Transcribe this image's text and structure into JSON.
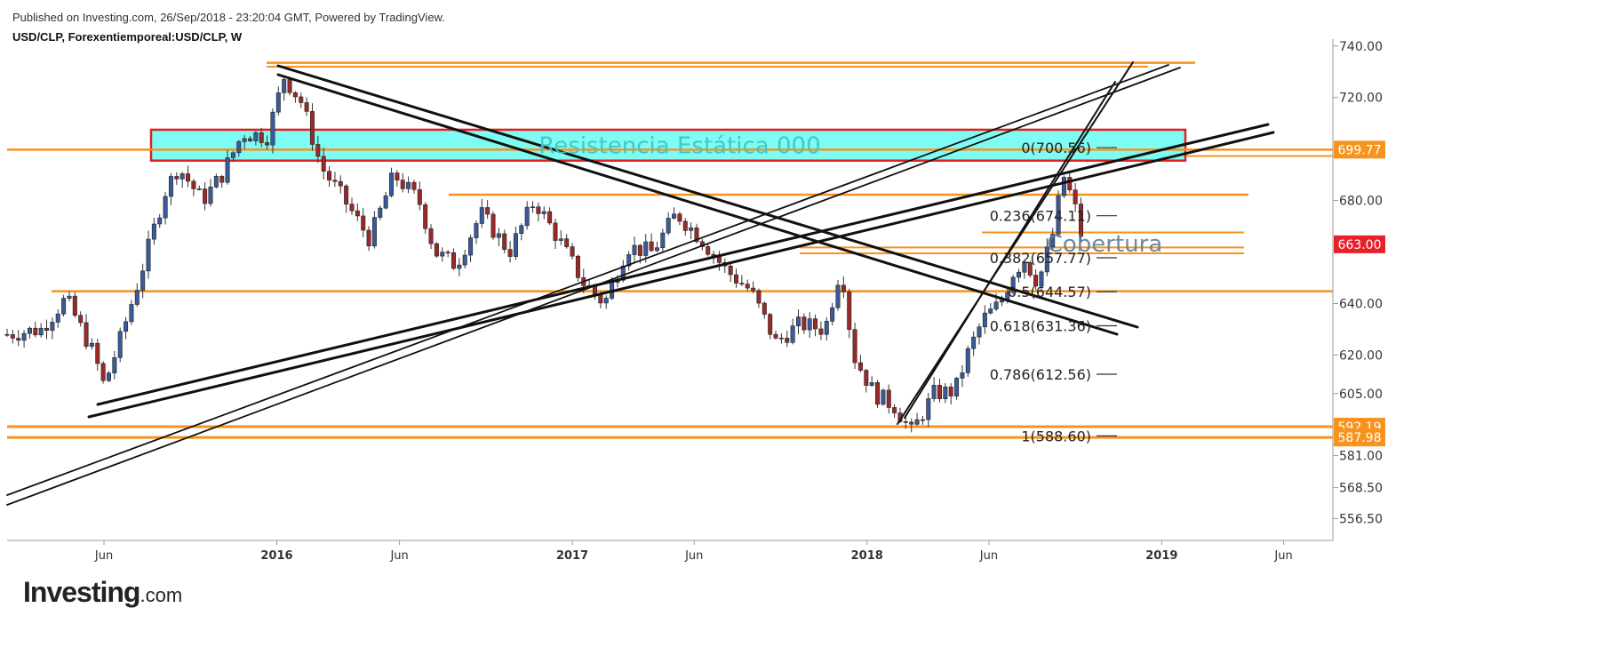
{
  "header": {
    "published": "Published on Investing.com, 26/Sep/2018 - 23:20:04 GMT, Powered by TradingView.",
    "symbol": "USD/CLP, Forexentiemporeal:USD/CLP, W"
  },
  "logo": {
    "main": "Investing",
    "suffix": ".com"
  },
  "chart_data": {
    "type": "candlestick",
    "interval": "W",
    "ylim": [
      548,
      742
    ],
    "xlim": [
      "2015-02-01",
      "2019-08-01"
    ],
    "y_ticks": [
      {
        "value": 740,
        "label": "740.00"
      },
      {
        "value": 720,
        "label": "720.00"
      },
      {
        "value": 680,
        "label": "680.00"
      },
      {
        "value": 640,
        "label": "640.00"
      },
      {
        "value": 620,
        "label": "620.00"
      },
      {
        "value": 605,
        "label": "605.00"
      },
      {
        "value": 581,
        "label": "581.00"
      },
      {
        "value": 568.5,
        "label": "568.50"
      },
      {
        "value": 556.5,
        "label": "556.50"
      }
    ],
    "x_ticks": [
      {
        "date": "2015-06-01",
        "label": "Jun",
        "bold": false
      },
      {
        "date": "2016-01-01",
        "label": "2016",
        "bold": true
      },
      {
        "date": "2016-06-01",
        "label": "Jun",
        "bold": false
      },
      {
        "date": "2017-01-01",
        "label": "2017",
        "bold": true
      },
      {
        "date": "2017-06-01",
        "label": "Jun",
        "bold": false
      },
      {
        "date": "2018-01-01",
        "label": "2018",
        "bold": true
      },
      {
        "date": "2018-06-01",
        "label": "Jun",
        "bold": false
      },
      {
        "date": "2019-01-01",
        "label": "2019",
        "bold": true
      },
      {
        "date": "2019-06-01",
        "label": "Jun",
        "bold": false
      }
    ],
    "price_tags": [
      {
        "value": 699.77,
        "label": "699.77",
        "color": "#f7931e"
      },
      {
        "value": 663.0,
        "label": "663.00",
        "color": "#e8202a"
      },
      {
        "value": 592.19,
        "label": "592.19",
        "color": "#f7931e"
      },
      {
        "value": 587.98,
        "label": "587.98",
        "color": "#f7931e"
      }
    ],
    "candle_anchors": [
      [
        "2015-02-01",
        628
      ],
      [
        "2015-03-15",
        630
      ],
      [
        "2015-04-15",
        642
      ],
      [
        "2015-05-20",
        620
      ],
      [
        "2015-06-01",
        608
      ],
      [
        "2015-06-20",
        625
      ],
      [
        "2015-07-15",
        650
      ],
      [
        "2015-08-15",
        683
      ],
      [
        "2015-09-01",
        693
      ],
      [
        "2015-10-01",
        680
      ],
      [
        "2015-10-25",
        690
      ],
      [
        "2015-11-20",
        706
      ],
      [
        "2015-12-20",
        705
      ],
      [
        "2016-01-10",
        728
      ],
      [
        "2016-02-01",
        718
      ],
      [
        "2016-02-25",
        693
      ],
      [
        "2016-03-25",
        680
      ],
      [
        "2016-04-25",
        665
      ],
      [
        "2016-05-25",
        690
      ],
      [
        "2016-06-25",
        680
      ],
      [
        "2016-07-15",
        660
      ],
      [
        "2016-08-10",
        655
      ],
      [
        "2016-09-10",
        675
      ],
      [
        "2016-10-15",
        660
      ],
      [
        "2016-11-15",
        680
      ],
      [
        "2016-12-15",
        665
      ],
      [
        "2017-01-15",
        648
      ],
      [
        "2017-02-10",
        640
      ],
      [
        "2017-03-10",
        662
      ],
      [
        "2017-04-10",
        660
      ],
      [
        "2017-05-10",
        675
      ],
      [
        "2017-06-10",
        665
      ],
      [
        "2017-07-10",
        653
      ],
      [
        "2017-08-10",
        645
      ],
      [
        "2017-09-10",
        625
      ],
      [
        "2017-10-10",
        632
      ],
      [
        "2017-11-10",
        630
      ],
      [
        "2017-11-30",
        655
      ],
      [
        "2017-12-15",
        620
      ],
      [
        "2018-01-10",
        605
      ],
      [
        "2018-02-05",
        600
      ],
      [
        "2018-02-25",
        590
      ],
      [
        "2018-03-25",
        605
      ],
      [
        "2018-04-20",
        606
      ],
      [
        "2018-05-05",
        620
      ],
      [
        "2018-05-25",
        634
      ],
      [
        "2018-06-15",
        640
      ],
      [
        "2018-07-01",
        652
      ],
      [
        "2018-07-15",
        657
      ],
      [
        "2018-08-01",
        648
      ],
      [
        "2018-08-20",
        668
      ],
      [
        "2018-09-01",
        690
      ],
      [
        "2018-09-15",
        678
      ],
      [
        "2018-09-26",
        663
      ]
    ],
    "annotations": {
      "zone_label": "Resistencia Estática  000",
      "cover_label": "Cobertura",
      "fib_levels": [
        {
          "value": 700.56,
          "label": "0(700.56)"
        },
        {
          "value": 674.11,
          "label": "0.236(674.11)"
        },
        {
          "value": 657.77,
          "label": "0.382(657.77)"
        },
        {
          "value": 644.57,
          "label": "0.5(644.57)"
        },
        {
          "value": 631.36,
          "label": "0.618(631.36)"
        },
        {
          "value": 612.56,
          "label": "0.786(612.56)"
        },
        {
          "value": 588.6,
          "label": "1(588.60)"
        }
      ]
    },
    "colors": {
      "bull": "#3b5a9a",
      "bear": "#9a2a2a",
      "level": "#f7931e",
      "zone_fill": "#7efcf4",
      "zone_border": "#e02020",
      "zone_text": "#3ec6c6",
      "trend": "#111111",
      "axis_text": "#333333"
    }
  }
}
